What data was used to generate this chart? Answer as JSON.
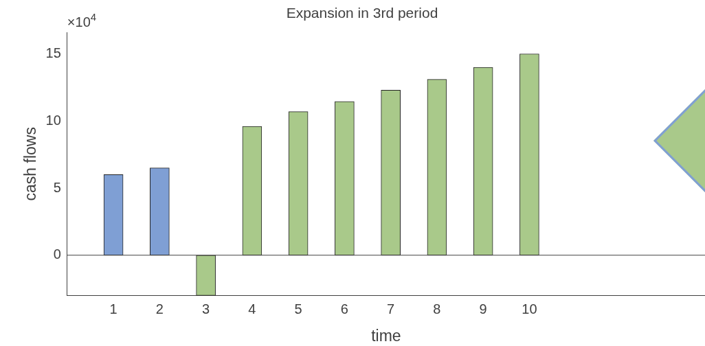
{
  "chart_data": {
    "type": "bar",
    "title": "Expansion in 3rd period",
    "xlabel": "time",
    "ylabel": "cash flows",
    "x": [
      1,
      2,
      3,
      4,
      5,
      6,
      7,
      8,
      9,
      10
    ],
    "values": [
      6,
      6.5,
      -3,
      9.6,
      10.7,
      11.45,
      12.3,
      13.1,
      14,
      15
    ],
    "colors": [
      "#7f9fd4",
      "#7f9fd4",
      "#a9c98a",
      "#a9c98a",
      "#a9c98a",
      "#a9c98a",
      "#a9c98a",
      "#a9c98a",
      "#a9c98a",
      "#a9c98a"
    ],
    "xlim": [
      0,
      13.8
    ],
    "xticks": [
      1,
      2,
      3,
      4,
      5,
      6,
      7,
      8,
      9,
      10
    ],
    "ylim": [
      -3,
      16.6
    ],
    "yticks": [
      0,
      5,
      10,
      15
    ],
    "annotations": [
      "×10$^{4}$"
    ],
    "ref_lines": [
      {
        "axis": "y",
        "value": 0,
        "color": "#404040"
      }
    ],
    "grid": false,
    "legend": false
  }
}
